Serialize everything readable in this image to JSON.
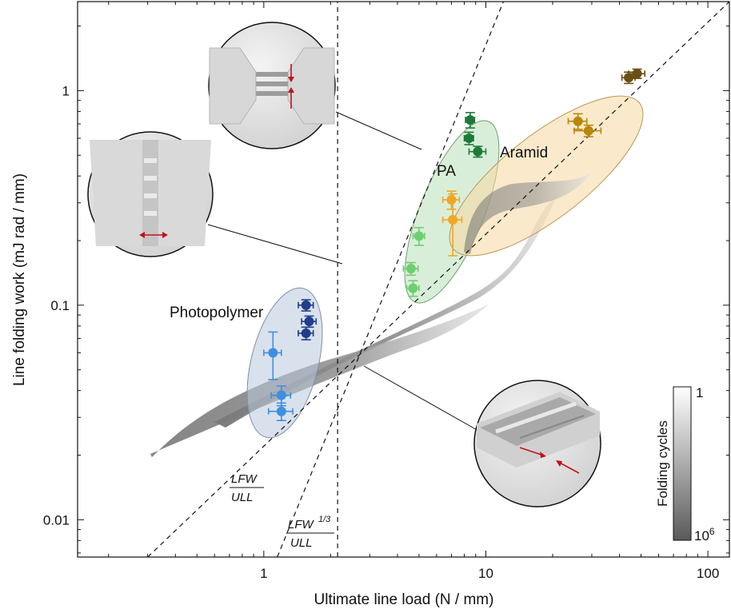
{
  "chart_data": {
    "type": "scatter",
    "xlabel": "Ultimate line load (N / mm)",
    "ylabel": "Line folding work (mJ rad / mm)",
    "xscale": "log",
    "yscale": "log",
    "xlim": [
      0.145,
      125
    ],
    "ylim": [
      0.0067,
      2.6
    ],
    "x_ticks": [
      1,
      10,
      100
    ],
    "x_tick_labels": [
      "1",
      "10",
      "100"
    ],
    "y_ticks": [
      0.01,
      0.1,
      1
    ],
    "y_tick_labels": [
      "0.01",
      "0.1",
      "1"
    ],
    "grid": false,
    "series": [
      {
        "name": "Photopolymer",
        "color": "#3f8fe0",
        "points": [
          {
            "x": 1.1,
            "y": 0.06,
            "xerr": 0.1,
            "yerr": 0.015
          },
          {
            "x": 1.2,
            "y": 0.038,
            "xerr": 0.12,
            "yerr": 0.004
          },
          {
            "x": 1.2,
            "y": 0.032,
            "xerr": 0.15,
            "yerr": 0.003
          }
        ]
      },
      {
        "name": "Photopolymer",
        "color": "#1f3d8c",
        "points": [
          {
            "x": 1.55,
            "y": 0.1,
            "xerr": 0.12,
            "yerr": 0.006
          },
          {
            "x": 1.6,
            "y": 0.084,
            "xerr": 0.12,
            "yerr": 0.005
          },
          {
            "x": 1.55,
            "y": 0.074,
            "xerr": 0.12,
            "yerr": 0.005
          }
        ]
      },
      {
        "name": "PA",
        "color": "#6dcf6f",
        "points": [
          {
            "x": 5.0,
            "y": 0.21,
            "xerr": 0.3,
            "yerr": 0.02
          },
          {
            "x": 4.6,
            "y": 0.148,
            "xerr": 0.35,
            "yerr": 0.01
          },
          {
            "x": 4.7,
            "y": 0.12,
            "xerr": 0.3,
            "yerr": 0.01
          }
        ]
      },
      {
        "name": "PA",
        "color": "#1e7a3a",
        "points": [
          {
            "x": 8.5,
            "y": 0.73,
            "xerr": 0.4,
            "yerr": 0.06
          },
          {
            "x": 8.4,
            "y": 0.6,
            "xerr": 0.4,
            "yerr": 0.04
          },
          {
            "x": 9.2,
            "y": 0.52,
            "xerr": 0.8,
            "yerr": 0.03
          }
        ]
      },
      {
        "name": "Aramid",
        "color": "#f2a623",
        "points": [
          {
            "x": 7.0,
            "y": 0.31,
            "xerr": 0.6,
            "yerr": 0.03
          },
          {
            "x": 7.1,
            "y": 0.25,
            "xerr": 0.7,
            "yerr": 0.08
          }
        ]
      },
      {
        "name": "Aramid",
        "color": "#b8860b",
        "points": [
          {
            "x": 26,
            "y": 0.72,
            "xerr": 2.5,
            "yerr": 0.06
          },
          {
            "x": 29,
            "y": 0.65,
            "xerr": 4,
            "yerr": 0.04
          }
        ]
      },
      {
        "name": "Aramid",
        "color": "#6b4f12",
        "points": [
          {
            "x": 44,
            "y": 1.15,
            "xerr": 3,
            "yerr": 0.07
          },
          {
            "x": 48,
            "y": 1.2,
            "xerr": 4,
            "yerr": 0.06
          }
        ]
      }
    ],
    "group_labels": [
      "Photopolymer",
      "PA",
      "Aramid"
    ],
    "annotations": {
      "lfw_ull": {
        "num": "LFW",
        "den": "ULL"
      },
      "lfw13_ull": {
        "num": "LFW",
        "sup": "1/3",
        "den": "ULL"
      }
    },
    "vertical_line_x": 2.15,
    "colorbar": {
      "title": "Folding cycles",
      "top_label": "1",
      "bottom_base": "10",
      "bottom_exp": "6"
    }
  }
}
